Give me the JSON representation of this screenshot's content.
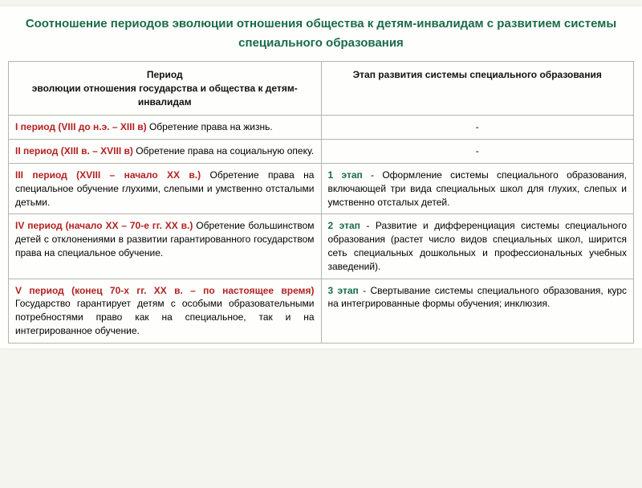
{
  "title": "Соотношение периодов эволюции отношения общества к детям-инвалидам с развитием системы специального образования",
  "headers": {
    "col1": "Период\nэволюции отношения государства и общества к детям-инвалидам",
    "col2": "Этап развития системы специального образования"
  },
  "colors": {
    "title": "#1a6b4a",
    "period": "#b22222",
    "stage": "#1a6b4a",
    "border": "#b0b8a8",
    "background": "#fefefc"
  },
  "rows": [
    {
      "period_label": "I период (VIII до н.э. – XIII в)",
      "period_text": " Обретение права на жизнь.",
      "stage_label": "",
      "stage_text": "-",
      "dash": true
    },
    {
      "period_label": "II период (XIII в. – XVIII в)",
      "period_text": " Обретение права на социальную опеку.",
      "stage_label": "",
      "stage_text": "-",
      "dash": true
    },
    {
      "period_label": "III период (XVIII – начало XX в.)",
      "period_text": " Обретение права на специальное обучение глухими, слепыми и умственно отсталыми детьми.",
      "stage_label": "1 этап",
      "stage_text": " - Оформление системы специального образования, включающей три вида специальных школ для глухих, слепых и умственно отсталых детей.",
      "dash": false
    },
    {
      "period_label": "IV период (начало XX – 70-е гг. XX в.)",
      "period_text": " Обретение большинством детей с отклонениями в развитии гарантированного государством права на специальное обучение.",
      "stage_label": "2 этап",
      "stage_text": " - Развитие и дифференциация системы специального образования (растет число видов специальных школ, ширится сеть специальных дошкольных и профессиональных учебных заведений).",
      "dash": false
    },
    {
      "period_label": "V период (конец 70-х гг. XX в. – по настоящее время)",
      "period_text": " Государство гарантирует детям с особыми образовательными потребностями право как на специальное, так и на интегрированное обучение.",
      "stage_label": "3 этап",
      "stage_text": " - Свертывание системы специального образования, курс на интегрированные формы обучения; инклюзия.",
      "dash": false
    }
  ]
}
